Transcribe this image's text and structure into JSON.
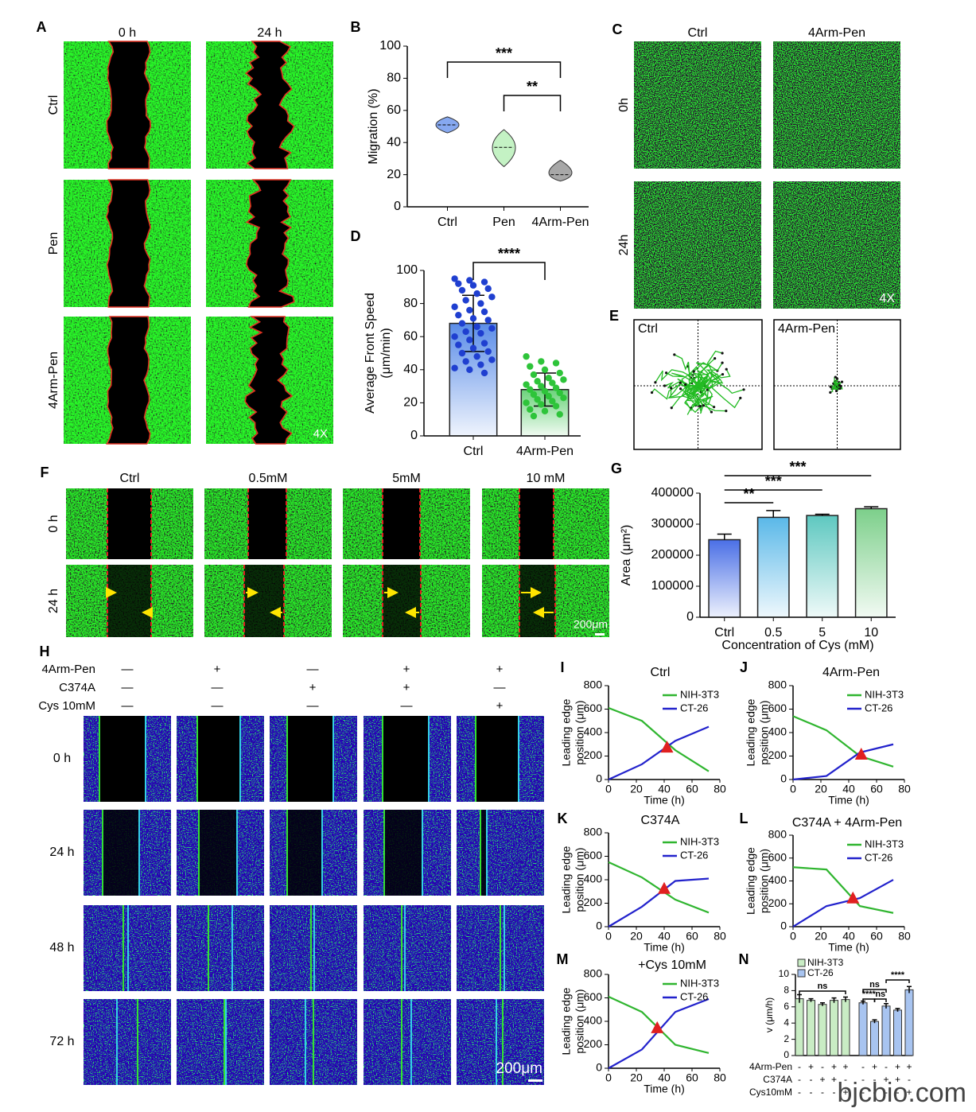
{
  "chart_data": [
    {
      "panel": "B",
      "type": "violin",
      "ylabel": "Migration (%)",
      "categories": [
        "Ctrl",
        "Pen",
        "4Arm-Pen"
      ],
      "values": [
        51,
        37,
        20
      ],
      "min": [
        46,
        25,
        16
      ],
      "max": [
        56,
        48,
        29
      ],
      "colors": [
        "#86a8f0",
        "#c4f2c4",
        "#a8a8a8"
      ],
      "ylim": [
        0,
        100
      ],
      "yticks": [
        0,
        20,
        40,
        60,
        80,
        100
      ],
      "significance": [
        {
          "between": [
            "Ctrl",
            "4Arm-Pen"
          ],
          "label": "***"
        },
        {
          "between": [
            "Pen",
            "4Arm-Pen"
          ],
          "label": "**"
        }
      ]
    },
    {
      "panel": "D",
      "type": "bar_scatter",
      "ylabel": [
        "Average Front Speed",
        "(μm/min)"
      ],
      "categories": [
        "Ctrl",
        "4Arm-Pen"
      ],
      "values": [
        68,
        28
      ],
      "errors": [
        17,
        10
      ],
      "points": [
        [
          95,
          94,
          93,
          92,
          91,
          89,
          88,
          86,
          84,
          82,
          80,
          78,
          76,
          75,
          73,
          71,
          70,
          68,
          66,
          65,
          63,
          62,
          60,
          58,
          56,
          55,
          53,
          51,
          50,
          48,
          46,
          45,
          43,
          41,
          40,
          38
        ],
        [
          48,
          45,
          44,
          42,
          40,
          38,
          37,
          35,
          34,
          33,
          32,
          31,
          30,
          29,
          28,
          27,
          26,
          25,
          24,
          23,
          22,
          21,
          20,
          19,
          18,
          16,
          15,
          13,
          12
        ]
      ],
      "colors": [
        "#5b8de8",
        "#6bd27a"
      ],
      "point_colors": [
        "#1f3fd0",
        "#2ec43a"
      ],
      "ylim": [
        0,
        100
      ],
      "yticks": [
        0,
        20,
        40,
        60,
        80,
        100
      ],
      "significance": [
        {
          "between": [
            "Ctrl",
            "4Arm-Pen"
          ],
          "label": "****"
        }
      ]
    },
    {
      "panel": "G",
      "type": "bar",
      "ylabel": "Area (μm²)",
      "xlabel": "Concentration of Cys (mM)",
      "categories": [
        "Ctrl",
        "0.5",
        "5",
        "10"
      ],
      "values": [
        250000,
        322000,
        328000,
        350000
      ],
      "errors": [
        18000,
        22000,
        4000,
        6000
      ],
      "colors": [
        "#4a6fe6",
        "#5ab8e8",
        "#5ec8c0",
        "#7ccf8a"
      ],
      "ylim": [
        0,
        400000
      ],
      "yticks": [
        0,
        100000,
        200000,
        300000,
        400000
      ],
      "significance": [
        {
          "between": [
            "Ctrl",
            "10"
          ],
          "label": "***"
        },
        {
          "between": [
            "Ctrl",
            "5"
          ],
          "label": "***"
        },
        {
          "between": [
            "Ctrl",
            "0.5"
          ],
          "label": "**"
        }
      ]
    },
    {
      "panel": "I",
      "type": "line",
      "title": "Ctrl",
      "ylabel": [
        "Leading edge",
        "position (μm)"
      ],
      "xlabel": "Time (h)",
      "x": [
        0,
        24,
        48,
        72
      ],
      "series": [
        {
          "name": "NIH-3T3",
          "color": "#2fb52f",
          "values": [
            610,
            500,
            250,
            70
          ]
        },
        {
          "name": "CT-26",
          "color": "#2222cc",
          "values": [
            0,
            130,
            330,
            450
          ]
        }
      ],
      "crossing": [
        42,
        270
      ],
      "crossing_color": "#e02020",
      "xlim": [
        0,
        80
      ],
      "xticks": [
        0,
        20,
        40,
        60,
        80
      ],
      "ylim": [
        0,
        800
      ],
      "yticks": [
        0,
        200,
        400,
        600,
        800
      ]
    },
    {
      "panel": "J",
      "type": "line",
      "title": "4Arm-Pen",
      "ylabel": [
        "Leading edge",
        "position (μm)"
      ],
      "xlabel": "Time (h)",
      "x": [
        0,
        24,
        48,
        72
      ],
      "series": [
        {
          "name": "NIH-3T3",
          "color": "#2fb52f",
          "values": [
            540,
            420,
            200,
            110
          ]
        },
        {
          "name": "CT-26",
          "color": "#2222cc",
          "values": [
            0,
            30,
            230,
            300
          ]
        }
      ],
      "crossing": [
        49,
        210
      ],
      "crossing_color": "#e02020",
      "xlim": [
        0,
        80
      ],
      "xticks": [
        0,
        20,
        40,
        60,
        80
      ],
      "ylim": [
        0,
        800
      ],
      "yticks": [
        0,
        200,
        400,
        600,
        800
      ]
    },
    {
      "panel": "K",
      "type": "line",
      "title": "C374A",
      "ylabel": [
        "Leading edge",
        "position (μm)"
      ],
      "xlabel": "Time (h)",
      "x": [
        0,
        24,
        48,
        72
      ],
      "series": [
        {
          "name": "NIH-3T3",
          "color": "#2fb52f",
          "values": [
            550,
            420,
            230,
            120
          ]
        },
        {
          "name": "CT-26",
          "color": "#2222cc",
          "values": [
            0,
            170,
            390,
            410
          ]
        }
      ],
      "crossing": [
        40,
        320
      ],
      "crossing_color": "#e02020",
      "xlim": [
        0,
        80
      ],
      "xticks": [
        0,
        20,
        40,
        60,
        80
      ],
      "ylim": [
        0,
        800
      ],
      "yticks": [
        0,
        200,
        400,
        600,
        800
      ]
    },
    {
      "panel": "L",
      "type": "line",
      "title": "C374A + 4Arm-Pen",
      "ylabel": [
        "Leading edge",
        "position (μm)"
      ],
      "xlabel": "Time (h)",
      "x": [
        0,
        24,
        48,
        72
      ],
      "series": [
        {
          "name": "NIH-3T3",
          "color": "#2fb52f",
          "values": [
            520,
            500,
            180,
            120
          ]
        },
        {
          "name": "CT-26",
          "color": "#2222cc",
          "values": [
            0,
            180,
            250,
            410
          ]
        }
      ],
      "crossing": [
        43,
        245
      ],
      "crossing_color": "#e02020",
      "xlim": [
        0,
        80
      ],
      "xticks": [
        0,
        20,
        40,
        60,
        80
      ],
      "ylim": [
        0,
        800
      ],
      "yticks": [
        0,
        200,
        400,
        600,
        800
      ]
    },
    {
      "panel": "M",
      "type": "line",
      "title": "+Cys 10mM",
      "ylabel": [
        "Leading edge",
        "position (μm)"
      ],
      "xlabel": "Time (h)",
      "x": [
        0,
        24,
        48,
        72
      ],
      "series": [
        {
          "name": "NIH-3T3",
          "color": "#2fb52f",
          "values": [
            610,
            480,
            200,
            130
          ]
        },
        {
          "name": "CT-26",
          "color": "#2222cc",
          "values": [
            0,
            160,
            480,
            590
          ]
        }
      ],
      "crossing": [
        35,
        340
      ],
      "crossing_color": "#e02020",
      "xlim": [
        0,
        80
      ],
      "xticks": [
        0,
        20,
        40,
        60,
        80
      ],
      "ylim": [
        0,
        800
      ],
      "yticks": [
        0,
        200,
        400,
        600,
        800
      ]
    },
    {
      "panel": "N",
      "type": "grouped_bar",
      "ylabel": "v (μm/h)",
      "series": [
        {
          "name": "NIH-3T3",
          "color": "#c9ecc4",
          "values": [
            7,
            6.8,
            6.3,
            6.8,
            6.9
          ],
          "errors": [
            0.5,
            0.2,
            0.2,
            0.3,
            0.3
          ]
        },
        {
          "name": "CT-26",
          "color": "#a8c4f0",
          "values": [
            6.5,
            4.2,
            6.1,
            5.6,
            8.1
          ],
          "errors": [
            0.2,
            0.2,
            0.3,
            0.2,
            0.4
          ]
        }
      ],
      "conditions": [
        {
          "name": "4Arm-Pen",
          "signs": [
            "-",
            "+",
            "-",
            "+",
            "+"
          ]
        },
        {
          "name": "C374A",
          "signs": [
            "-",
            "-",
            "+",
            "+",
            "-"
          ]
        },
        {
          "name": "Cys10mM",
          "signs": [
            "-",
            "-",
            "-",
            "-",
            "+"
          ]
        }
      ],
      "ylim": [
        0,
        10
      ],
      "yticks": [
        0,
        2,
        4,
        6,
        8,
        10
      ],
      "significance": [
        {
          "series": "NIH-3T3",
          "between": [
            0,
            4
          ],
          "label": "ns"
        },
        {
          "series": "CT-26",
          "between": [
            0,
            2
          ],
          "label": "ns"
        },
        {
          "series": "CT-26",
          "between": [
            0,
            1
          ],
          "label": "****"
        },
        {
          "series": "CT-26",
          "between": [
            1,
            2
          ],
          "label": "ns"
        },
        {
          "series": "CT-26",
          "between": [
            2,
            4
          ],
          "label": "****"
        }
      ]
    }
  ],
  "image_panels": [
    {
      "panel": "A",
      "columns": [
        "0 h",
        "24 h"
      ],
      "rows": [
        "Ctrl",
        "Pen",
        "4Arm-Pen"
      ],
      "scale": "4X"
    },
    {
      "panel": "C",
      "columns": [
        "Ctrl",
        "4Arm-Pen"
      ],
      "rows": [
        "0h",
        "24h"
      ],
      "scale": "4X"
    },
    {
      "panel": "E",
      "labels": [
        "Ctrl",
        "4Arm-Pen"
      ]
    },
    {
      "panel": "F",
      "columns": [
        "Ctrl",
        "0.5mM",
        "5mM",
        "10 mM"
      ],
      "rows": [
        "0 h",
        "24 h"
      ],
      "scale": "200μm"
    },
    {
      "panel": "H",
      "conditions": [
        {
          "name": "4Arm-Pen",
          "signs": [
            "—",
            "+",
            "—",
            "+",
            "+"
          ]
        },
        {
          "name": "C374A",
          "signs": [
            "—",
            "—",
            "+",
            "+",
            "—"
          ]
        },
        {
          "name": "Cys 10mM",
          "signs": [
            "—",
            "—",
            "—",
            "—",
            "+"
          ]
        }
      ],
      "rows": [
        "0 h",
        "24 h",
        "48 h",
        "72 h"
      ],
      "scale": "200μm"
    }
  ],
  "watermark": "bjcbio.com"
}
